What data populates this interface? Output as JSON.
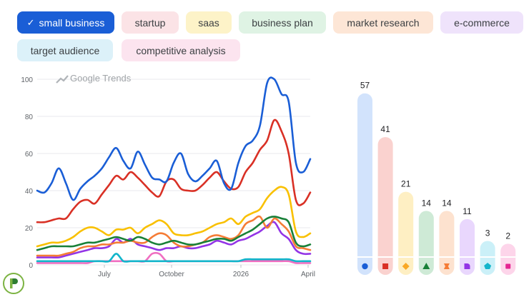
{
  "chips": [
    {
      "label": "small business",
      "selected": true,
      "bg": "#1a5ed6",
      "fg": "#ffffff"
    },
    {
      "label": "startup",
      "selected": false,
      "bg": "#fbe3e6",
      "fg": "#3c4043"
    },
    {
      "label": "saas",
      "selected": false,
      "bg": "#fdf3c8",
      "fg": "#3c4043"
    },
    {
      "label": "business plan",
      "selected": false,
      "bg": "#dff3e4",
      "fg": "#3c4043"
    },
    {
      "label": "market research",
      "selected": false,
      "bg": "#fde6d6",
      "fg": "#3c4043"
    },
    {
      "label": "e-commerce",
      "selected": false,
      "bg": "#efe3fb",
      "fg": "#3c4043"
    },
    {
      "label": "target audience",
      "selected": false,
      "bg": "#dcf1f9",
      "fg": "#3c4043"
    },
    {
      "label": "competitive analysis",
      "selected": false,
      "bg": "#fce4ef",
      "fg": "#3c4043"
    }
  ],
  "watermark": "Google Trends",
  "chart_data": [
    {
      "type": "line",
      "ylim": [
        0,
        100
      ],
      "yticks": [
        0,
        20,
        40,
        60,
        80,
        100
      ],
      "grid": true,
      "x_tick_labels": [
        "July",
        "October",
        "2026",
        "April"
      ],
      "series": [
        {
          "name": "small business",
          "color": "#1a5ed6",
          "values": [
            40,
            39,
            44,
            52,
            44,
            35,
            41,
            45,
            48,
            52,
            58,
            63,
            56,
            52,
            61,
            54,
            47,
            46,
            45,
            55,
            60,
            49,
            45,
            48,
            52,
            56,
            44,
            41,
            55,
            64,
            67,
            75,
            98,
            100,
            92,
            88,
            55,
            50,
            57
          ]
        },
        {
          "name": "startup",
          "color": "#d93025",
          "values": [
            23,
            23,
            24,
            25,
            25,
            30,
            34,
            35,
            33,
            38,
            43,
            48,
            46,
            50,
            47,
            43,
            39,
            37,
            45,
            46,
            41,
            40,
            40,
            43,
            47,
            50,
            45,
            41,
            42,
            50,
            55,
            62,
            67,
            78,
            72,
            60,
            35,
            33,
            39
          ]
        },
        {
          "name": "saas",
          "color": "#f9c000",
          "values": [
            10,
            11,
            12,
            12,
            13,
            15,
            18,
            20,
            20,
            18,
            16,
            19,
            19,
            20,
            17,
            20,
            22,
            24,
            22,
            17,
            16,
            16,
            17,
            18,
            20,
            22,
            23,
            25,
            22,
            26,
            28,
            30,
            36,
            40,
            42,
            38,
            18,
            15,
            17
          ]
        },
        {
          "name": "business plan",
          "color": "#188038",
          "values": [
            8,
            9,
            10,
            10,
            10,
            10,
            11,
            12,
            12,
            13,
            14,
            15,
            14,
            13,
            15,
            14,
            12,
            11,
            12,
            13,
            12,
            11,
            11,
            12,
            13,
            14,
            14,
            13,
            15,
            17,
            19,
            22,
            25,
            26,
            25,
            23,
            12,
            10,
            11
          ]
        },
        {
          "name": "market research",
          "color": "#f57c36",
          "values": [
            5,
            5,
            5,
            5,
            6,
            7,
            9,
            10,
            10,
            11,
            11,
            12,
            12,
            13,
            12,
            12,
            15,
            17,
            16,
            12,
            10,
            10,
            11,
            12,
            15,
            16,
            15,
            14,
            16,
            22,
            24,
            26,
            20,
            25,
            22,
            18,
            10,
            9,
            8
          ]
        },
        {
          "name": "e-commerce",
          "color": "#9334e6",
          "values": [
            4,
            4,
            4,
            4,
            5,
            6,
            7,
            8,
            9,
            9,
            10,
            14,
            12,
            14,
            11,
            10,
            9,
            8,
            9,
            9,
            10,
            9,
            9,
            10,
            11,
            13,
            12,
            11,
            13,
            14,
            16,
            18,
            21,
            23,
            17,
            14,
            8,
            6,
            6
          ]
        },
        {
          "name": "target audience",
          "color": "#12b5cb",
          "values": [
            2,
            2,
            2,
            2,
            2,
            2,
            2,
            2,
            2,
            2,
            2,
            6,
            2,
            2,
            2,
            2,
            2,
            2,
            2,
            2,
            2,
            2,
            2,
            2,
            2,
            2,
            2,
            2,
            2,
            3,
            3,
            3,
            3,
            3,
            3,
            3,
            2,
            2,
            2
          ]
        },
        {
          "name": "competitive analysis",
          "color": "#f06ec1",
          "values": [
            1,
            1,
            1,
            1,
            1,
            1,
            1,
            1,
            2,
            2,
            2,
            2,
            2,
            2,
            2,
            2,
            6,
            6,
            2,
            2,
            2,
            2,
            2,
            2,
            2,
            2,
            2,
            2,
            2,
            2,
            2,
            2,
            2,
            2,
            2,
            2,
            1,
            1,
            1
          ]
        }
      ]
    },
    {
      "type": "bar",
      "categories": [
        "small business",
        "startup",
        "saas",
        "business plan",
        "market research",
        "e-commerce",
        "target audience",
        "competitive analysis"
      ],
      "values": [
        57,
        41,
        21,
        14,
        14,
        11,
        3,
        2
      ],
      "colors": [
        "#d2e3fc",
        "#fad2cf",
        "#feefc3",
        "#ceead6",
        "#fde2cf",
        "#e9d7fd",
        "#cbf0f8",
        "#fdd5ea"
      ],
      "marker_colors": [
        "#1a5ed6",
        "#d93025",
        "#f9a825",
        "#188038",
        "#f57c36",
        "#9334e6",
        "#12b5cb",
        "#e52592"
      ],
      "marker_shapes": [
        "circle",
        "square",
        "diamond",
        "triangle",
        "hourglass",
        "halfround",
        "pentagon",
        "square-small"
      ]
    }
  ]
}
